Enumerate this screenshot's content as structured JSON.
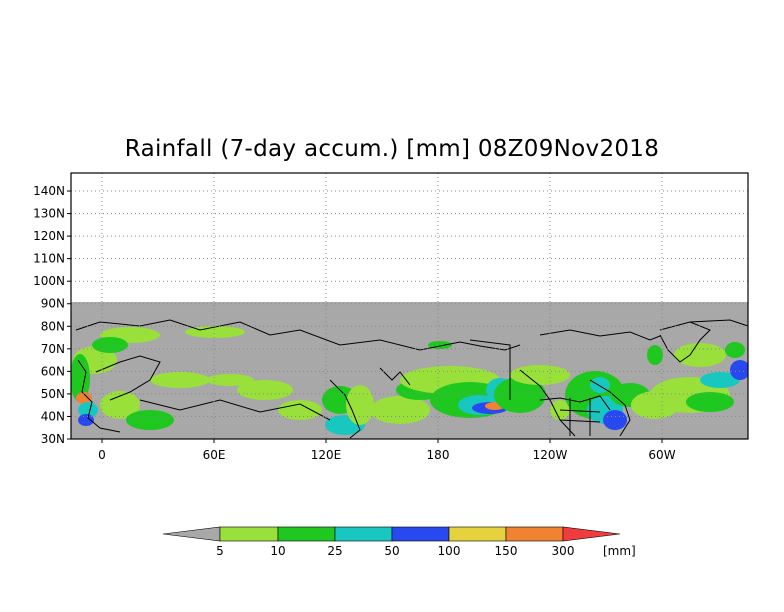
{
  "title": "Rainfall (7-day accum.) [mm] 08Z09Nov2018",
  "lat_labels": [
    "140N",
    "130N",
    "120N",
    "110N",
    "100N",
    "90N",
    "80N",
    "70N",
    "60N",
    "50N",
    "40N",
    "30N"
  ],
  "lon_labels": [
    "0",
    "60E",
    "120E",
    "180",
    "120W",
    "60W"
  ],
  "colorbar": {
    "levels": [
      "5",
      "10",
      "25",
      "50",
      "100",
      "150",
      "300"
    ],
    "unit": "[mm]",
    "colors": [
      "#a8a8a8",
      "#9ae03a",
      "#1ec81e",
      "#18c8c0",
      "#2848f0",
      "#e6d23c",
      "#f08232",
      "#f03c3c"
    ]
  },
  "map_colors": {
    "nodata": "#a8a8a8",
    "frame": "#000000",
    "grid": "#888888"
  }
}
